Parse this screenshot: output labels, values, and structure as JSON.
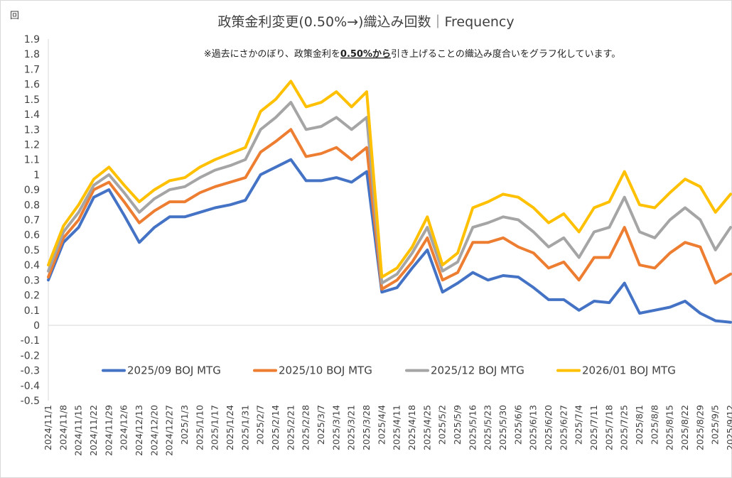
{
  "chart_data": {
    "type": "line",
    "title": "政策金利変更(0.50%→)織込み回数｜Frequency",
    "ylabel": "回",
    "note": {
      "prefix": "※過去にさかのぼり、政策金利を",
      "highlight": "0.50%から",
      "suffix": "引き上げることの織込み度合いをグラフ化しています。"
    },
    "ylim": [
      -0.5,
      1.9
    ],
    "yticks": [
      "-0.5",
      "-0.4",
      "-0.3",
      "-0.2",
      "-0.1",
      "0",
      "0.1",
      "0.2",
      "0.3",
      "0.4",
      "0.5",
      "0.6",
      "0.7",
      "0.8",
      "0.9",
      "1",
      "1.1",
      "1.2",
      "1.3",
      "1.4",
      "1.5",
      "1.6",
      "1.7",
      "1.8",
      "1.9"
    ],
    "legend_position": "bottom-inner",
    "grid": false,
    "x": [
      "2024/11/1",
      "2024/11/8",
      "2024/11/15",
      "2024/11/22",
      "2024/11/29",
      "2024/12/6",
      "2024/12/13",
      "2024/12/20",
      "2024/12/27",
      "2025/1/3",
      "2025/1/10",
      "2025/1/17",
      "2025/1/24",
      "2025/1/31",
      "2025/2/7",
      "2025/2/14",
      "2025/2/21",
      "2025/2/28",
      "2025/3/7",
      "2025/3/14",
      "2025/3/21",
      "2025/3/28",
      "2025/4/4",
      "2025/4/11",
      "2025/4/18",
      "2025/4/25",
      "2025/5/2",
      "2025/5/9",
      "2025/5/16",
      "2025/5/23",
      "2025/5/30",
      "2025/6/6",
      "2025/6/13",
      "2025/6/20",
      "2025/6/27",
      "2025/7/4",
      "2025/7/11",
      "2025/7/18",
      "2025/7/25",
      "2025/8/1",
      "2025/8/8",
      "2025/8/15",
      "2025/8/22",
      "2025/8/29",
      "2025/9/5",
      "2025/9/12"
    ],
    "series": [
      {
        "name": "2025/09 BOJ MTG",
        "color": "#4472C4",
        "values": [
          0.3,
          0.55,
          0.65,
          0.85,
          0.9,
          0.73,
          0.55,
          0.65,
          0.72,
          0.72,
          0.75,
          0.78,
          0.8,
          0.83,
          1.0,
          1.05,
          1.1,
          0.96,
          0.96,
          0.98,
          0.95,
          1.02,
          0.22,
          0.25,
          0.38,
          0.5,
          0.22,
          0.28,
          0.35,
          0.3,
          0.33,
          0.32,
          0.25,
          0.17,
          0.17,
          0.1,
          0.16,
          0.15,
          0.28,
          0.08,
          0.1,
          0.12,
          0.16,
          0.08,
          0.03,
          0.02
        ]
      },
      {
        "name": "2025/10 BOJ MTG",
        "color": "#ED7D31",
        "values": [
          0.32,
          0.58,
          0.7,
          0.9,
          0.95,
          0.82,
          0.68,
          0.76,
          0.82,
          0.82,
          0.88,
          0.92,
          0.95,
          0.98,
          1.15,
          1.22,
          1.3,
          1.12,
          1.14,
          1.18,
          1.1,
          1.18,
          0.24,
          0.3,
          0.42,
          0.58,
          0.3,
          0.35,
          0.55,
          0.55,
          0.58,
          0.52,
          0.48,
          0.38,
          0.42,
          0.3,
          0.45,
          0.45,
          0.65,
          0.4,
          0.38,
          0.48,
          0.55,
          0.52,
          0.28,
          0.34
        ]
      },
      {
        "name": "2025/12 BOJ MTG",
        "color": "#A5A5A5",
        "values": [
          0.36,
          0.62,
          0.75,
          0.93,
          1.0,
          0.88,
          0.75,
          0.84,
          0.9,
          0.92,
          0.98,
          1.03,
          1.06,
          1.1,
          1.3,
          1.38,
          1.48,
          1.3,
          1.32,
          1.38,
          1.3,
          1.38,
          0.28,
          0.34,
          0.48,
          0.65,
          0.36,
          0.42,
          0.65,
          0.68,
          0.72,
          0.7,
          0.62,
          0.52,
          0.58,
          0.45,
          0.62,
          0.65,
          0.85,
          0.62,
          0.58,
          0.7,
          0.78,
          0.7,
          0.5,
          0.65
        ]
      },
      {
        "name": "2026/01 BOJ MTG",
        "color": "#FFC000",
        "values": [
          0.4,
          0.66,
          0.8,
          0.97,
          1.05,
          0.93,
          0.82,
          0.9,
          0.96,
          0.98,
          1.05,
          1.1,
          1.14,
          1.18,
          1.42,
          1.5,
          1.62,
          1.45,
          1.48,
          1.55,
          1.45,
          1.55,
          0.32,
          0.38,
          0.52,
          0.72,
          0.4,
          0.48,
          0.78,
          0.82,
          0.87,
          0.85,
          0.78,
          0.68,
          0.74,
          0.62,
          0.78,
          0.82,
          1.02,
          0.8,
          0.78,
          0.88,
          0.97,
          0.92,
          0.75,
          0.87
        ]
      }
    ]
  }
}
